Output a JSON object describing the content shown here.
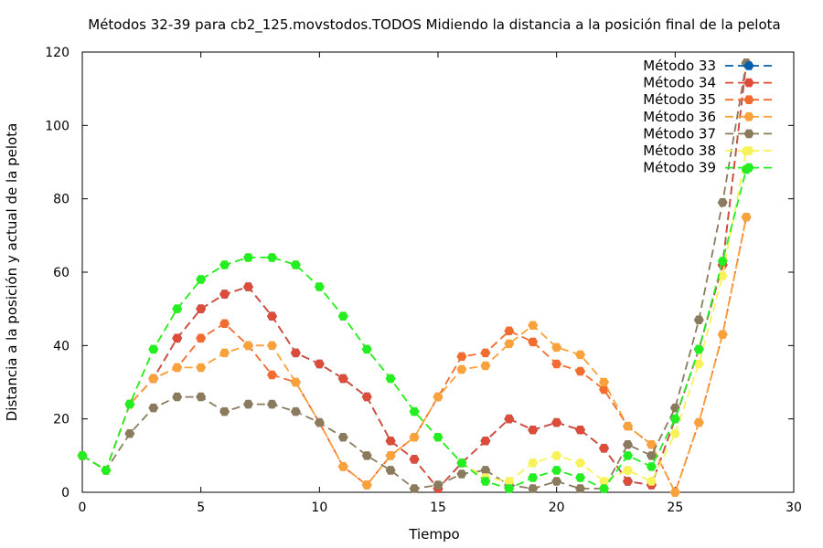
{
  "chart_data": {
    "type": "line",
    "title": "Métodos 32-39 para cb2_125.movstodos.TODOS Midiendo la distancia a la posición final de la pelota",
    "xlabel": "Tiempo",
    "ylabel": "Distancia a la posición y actual de la pelota",
    "xlim": [
      0,
      30
    ],
    "ylim": [
      0,
      120
    ],
    "xticks": [
      0,
      5,
      10,
      15,
      20,
      25,
      30
    ],
    "yticks": [
      0,
      20,
      40,
      60,
      80,
      100,
      120
    ],
    "grid": false,
    "legend_position": "top-right",
    "series": [
      {
        "name": "Método 33",
        "color": "#0060ad",
        "x": [
          0,
          1,
          2,
          3,
          4,
          5,
          6,
          7,
          8,
          9,
          10,
          11,
          12,
          13,
          14,
          15,
          16,
          17,
          18,
          19,
          20,
          21,
          22,
          23,
          24,
          25,
          26,
          27,
          28
        ],
        "y": [
          10,
          6,
          24,
          31,
          42,
          50,
          54,
          56,
          48,
          38,
          35,
          31,
          26,
          14,
          9,
          1,
          8,
          14,
          20,
          17,
          19,
          17,
          12,
          3,
          2,
          20,
          39,
          62,
          117
        ]
      },
      {
        "name": "Método 34",
        "color": "#dd4b39",
        "x": [
          0,
          1,
          2,
          3,
          4,
          5,
          6,
          7,
          8,
          9,
          10,
          11,
          12,
          13,
          14,
          15,
          16,
          17,
          18,
          19,
          20,
          21,
          22,
          23,
          24,
          25,
          26,
          27,
          28
        ],
        "y": [
          10,
          6,
          24,
          31,
          42,
          50,
          54,
          56,
          48,
          38,
          35,
          31,
          26,
          14,
          9,
          1,
          8,
          14,
          20,
          17,
          19,
          17,
          12,
          3,
          2,
          20,
          39,
          62,
          117
        ]
      },
      {
        "name": "Método 35",
        "color": "#f26c30",
        "x": [
          0,
          1,
          2,
          3,
          4,
          5,
          6,
          7,
          8,
          9,
          10,
          11,
          12,
          13,
          14,
          15,
          16,
          17,
          18,
          19,
          20,
          21,
          22,
          23,
          24,
          25,
          26,
          27,
          28
        ],
        "y": [
          10,
          6,
          24,
          31,
          34,
          42,
          46,
          40,
          32,
          30,
          19,
          7,
          2,
          10,
          15,
          26,
          37,
          38,
          44,
          41,
          35,
          33,
          28,
          18,
          13,
          0,
          19,
          43,
          75
        ]
      },
      {
        "name": "Método 36",
        "color": "#f9a13a",
        "x": [
          0,
          1,
          2,
          3,
          4,
          5,
          6,
          7,
          8,
          9,
          10,
          11,
          12,
          13,
          14,
          15,
          16,
          17,
          18,
          19,
          20,
          21,
          22,
          23,
          24,
          25,
          26,
          27,
          28
        ],
        "y": [
          10,
          6,
          24,
          31,
          34,
          34,
          38,
          40,
          40,
          30,
          19,
          7,
          2,
          10,
          15,
          26,
          33.5,
          34.5,
          40.5,
          45.5,
          39.5,
          37.5,
          30,
          18,
          13,
          0,
          19,
          43,
          75
        ]
      },
      {
        "name": "Método 37",
        "color": "#8b7b5e",
        "x": [
          0,
          1,
          2,
          3,
          4,
          5,
          6,
          7,
          8,
          9,
          10,
          11,
          12,
          13,
          14,
          15,
          16,
          17,
          18,
          19,
          20,
          21,
          22,
          23,
          24,
          25,
          26,
          27,
          28
        ],
        "y": [
          10,
          6,
          16,
          23,
          26,
          26,
          22,
          24,
          24,
          22,
          19,
          15,
          10,
          6,
          1,
          2,
          5,
          6,
          2,
          1,
          3,
          1,
          1,
          13,
          10,
          23,
          47,
          79,
          117
        ]
      },
      {
        "name": "Método 38",
        "color": "#f7f25a",
        "x": [
          0,
          1,
          2,
          3,
          4,
          5,
          6,
          7,
          8,
          9,
          10,
          11,
          12,
          13,
          14,
          15,
          16,
          17,
          18,
          19,
          20,
          21,
          22,
          23,
          24,
          25,
          26,
          27,
          28
        ],
        "y": [
          10,
          6,
          24,
          39,
          50,
          58,
          62,
          64,
          64,
          62,
          56,
          48,
          39,
          31,
          22,
          15,
          8,
          4,
          3,
          8,
          10,
          8,
          3,
          6,
          3,
          16,
          35,
          59,
          93
        ]
      },
      {
        "name": "Método 39",
        "color": "#22ee22",
        "x": [
          0,
          1,
          2,
          3,
          4,
          5,
          6,
          7,
          8,
          9,
          10,
          11,
          12,
          13,
          14,
          15,
          16,
          17,
          18,
          19,
          20,
          21,
          22,
          23,
          24,
          25,
          26,
          27,
          28
        ],
        "y": [
          10,
          6,
          24,
          39,
          50,
          58,
          62,
          64,
          64,
          62,
          56,
          48,
          39,
          31,
          22,
          15,
          8,
          3,
          1,
          4,
          6,
          4,
          1,
          10,
          7,
          20,
          39,
          63,
          88
        ]
      }
    ]
  }
}
